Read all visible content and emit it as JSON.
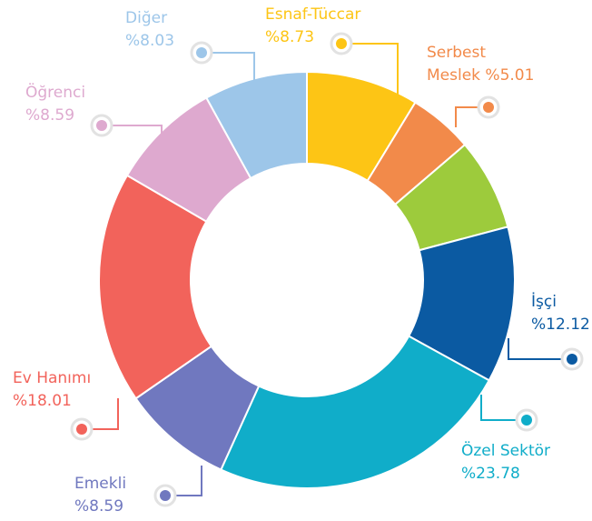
{
  "chart_data": {
    "type": "donut",
    "categories": [
      "Esnaf-Tüccar",
      "Serbest Meslek",
      null,
      "İşçi",
      "Özel Sektör",
      "Emekli",
      "Ev Hanımı",
      "Öğrenci",
      "Diğer"
    ],
    "values": [
      8.73,
      5.01,
      7.14,
      12.12,
      23.78,
      8.59,
      18.01,
      8.59,
      8.03
    ],
    "value_labels": [
      "%8.73",
      "%5.01",
      null,
      "%12.12",
      "%23.78",
      "%8.59",
      "%18.01",
      "%8.59",
      "%8.03"
    ],
    "colors": [
      "#fdc515",
      "#f28a4a",
      "#9dcb3c",
      "#0b5aa2",
      "#10adc9",
      "#7078bf",
      "#f2635b",
      "#dea9cf",
      "#9dc6e9"
    ]
  }
}
